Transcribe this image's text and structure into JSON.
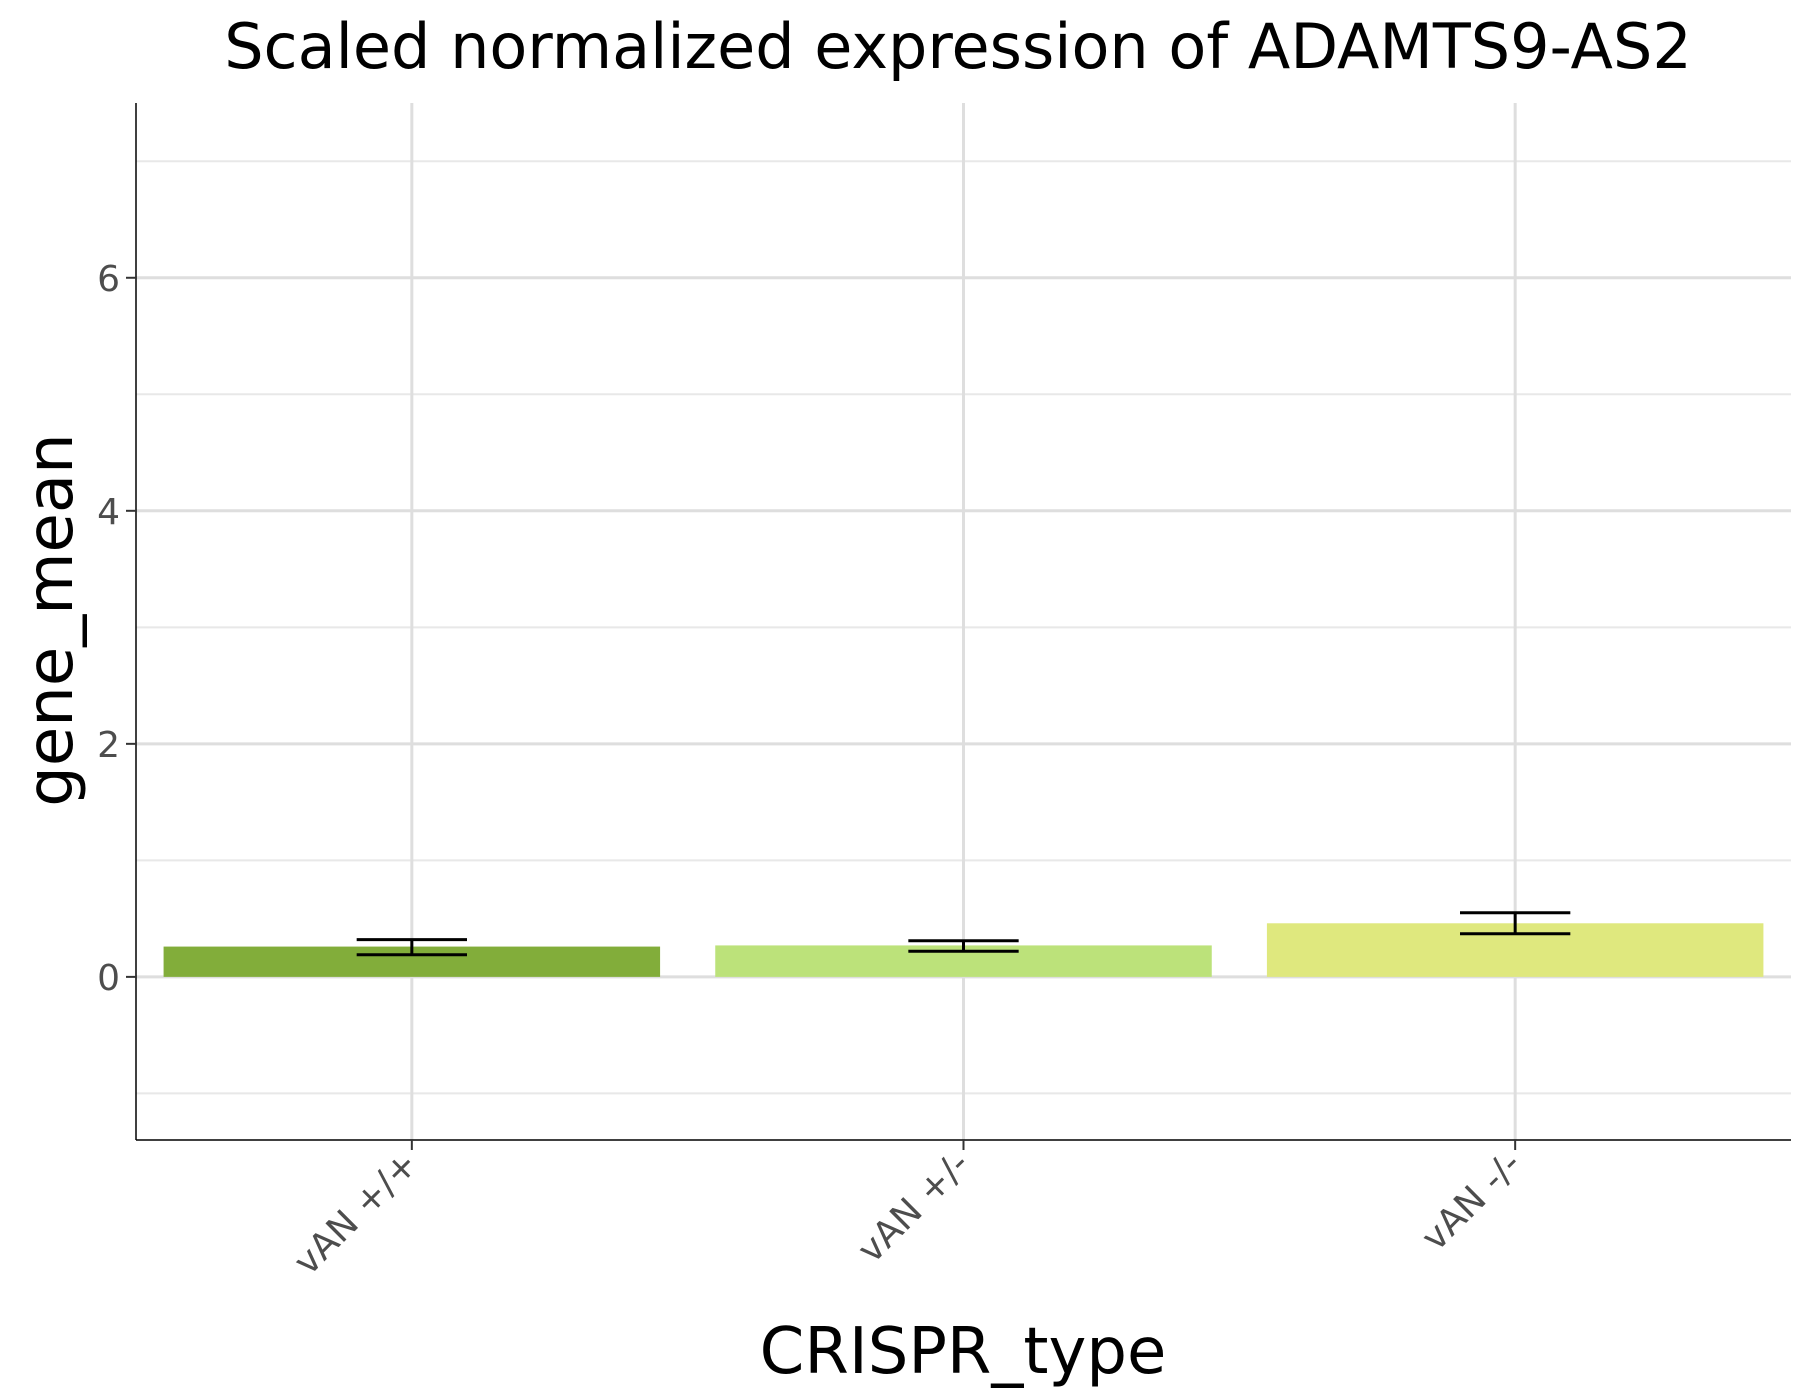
{
  "chart_data": {
    "type": "bar",
    "title": "Scaled normalized expression of ADAMTS9-AS2",
    "xlabel": "CRISPR_type",
    "ylabel": "gene_mean",
    "categories": [
      "vAN +/+",
      "vAN +/-",
      "vAN -/-"
    ],
    "values": [
      0.26,
      0.27,
      0.46
    ],
    "error_low": [
      0.19,
      0.22,
      0.37
    ],
    "error_high": [
      0.32,
      0.31,
      0.55
    ],
    "colors": [
      "#82ad3a",
      "#bce27a",
      "#dfe87e"
    ],
    "ylim": [
      -1.4,
      7.5
    ],
    "y_major_ticks": [
      0,
      2,
      4,
      6
    ],
    "y_tick_labels": [
      "0",
      "2",
      "4",
      "6"
    ],
    "y_minor_ticks": [
      -1,
      1,
      3,
      5,
      7
    ],
    "grid": true,
    "legend": "none"
  }
}
